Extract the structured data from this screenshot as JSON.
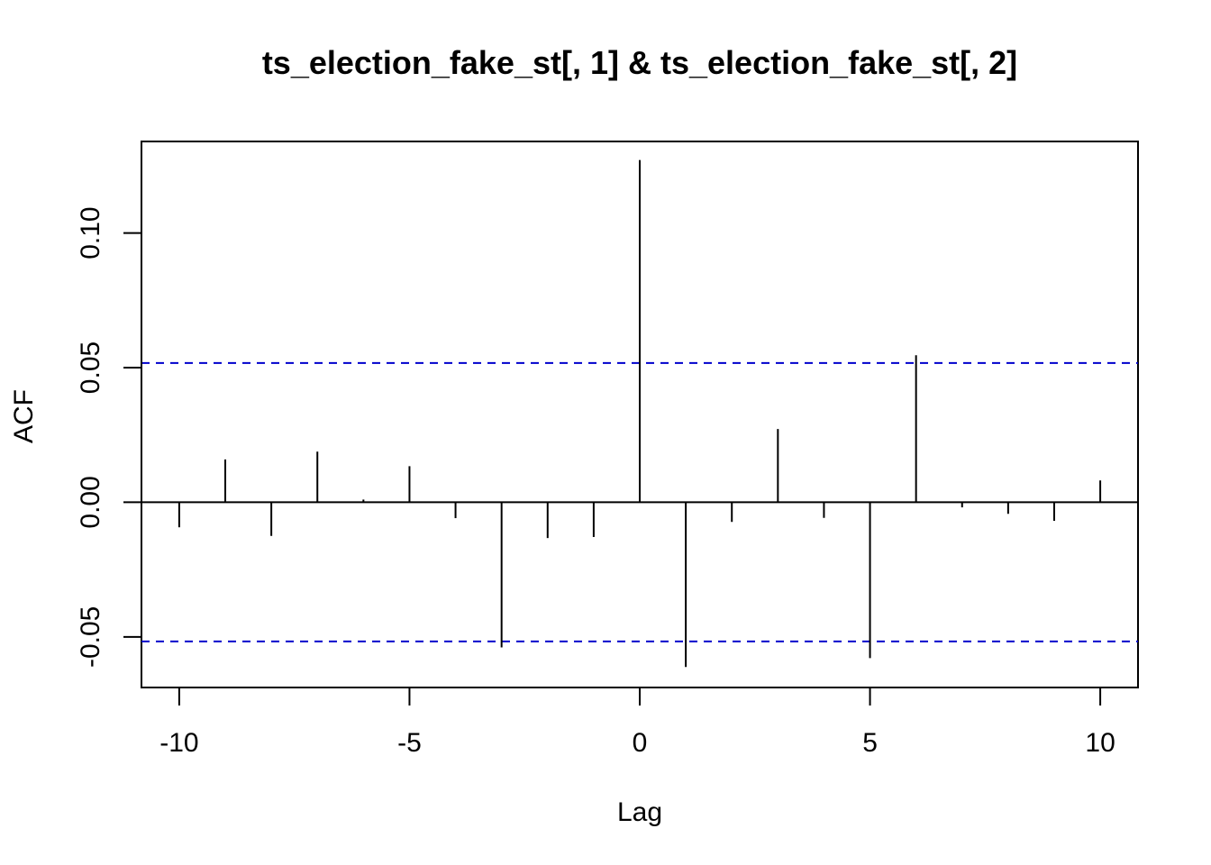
{
  "chart_data": {
    "type": "bar",
    "title": "ts_election_fake_st[, 1] & ts_election_fake_st[, 2]",
    "xlabel": "Lag",
    "ylabel": "ACF",
    "xlim": [
      -10.82,
      10.82
    ],
    "ylim": [
      -0.0688,
      0.134
    ],
    "x_ticks": [
      -10,
      -5,
      0,
      5,
      10
    ],
    "x_tick_labels": [
      "-10",
      "-5",
      "0",
      "5",
      "10"
    ],
    "y_ticks": [
      -0.05,
      0.0,
      0.05,
      0.1
    ],
    "y_tick_labels": [
      "-0.05",
      "0.00",
      "0.05",
      "0.10"
    ],
    "ci_bounds": [
      0.0517,
      -0.0517
    ],
    "ci_color": "#0000cc",
    "bar_color": "#000000",
    "lags": [
      -10,
      -9,
      -8,
      -7,
      -6,
      -5,
      -4,
      -3,
      -2,
      -1,
      0,
      1,
      2,
      3,
      4,
      5,
      6,
      7,
      8,
      9,
      10
    ],
    "values": [
      -0.0093,
      0.0159,
      -0.0125,
      0.0188,
      0.001,
      0.0134,
      -0.0059,
      -0.0539,
      -0.0133,
      -0.0129,
      0.1271,
      -0.0612,
      -0.0073,
      0.0272,
      -0.0058,
      -0.0579,
      0.0546,
      -0.0019,
      -0.0043,
      -0.0069,
      0.0081
    ],
    "grid": false,
    "legend": "none"
  }
}
